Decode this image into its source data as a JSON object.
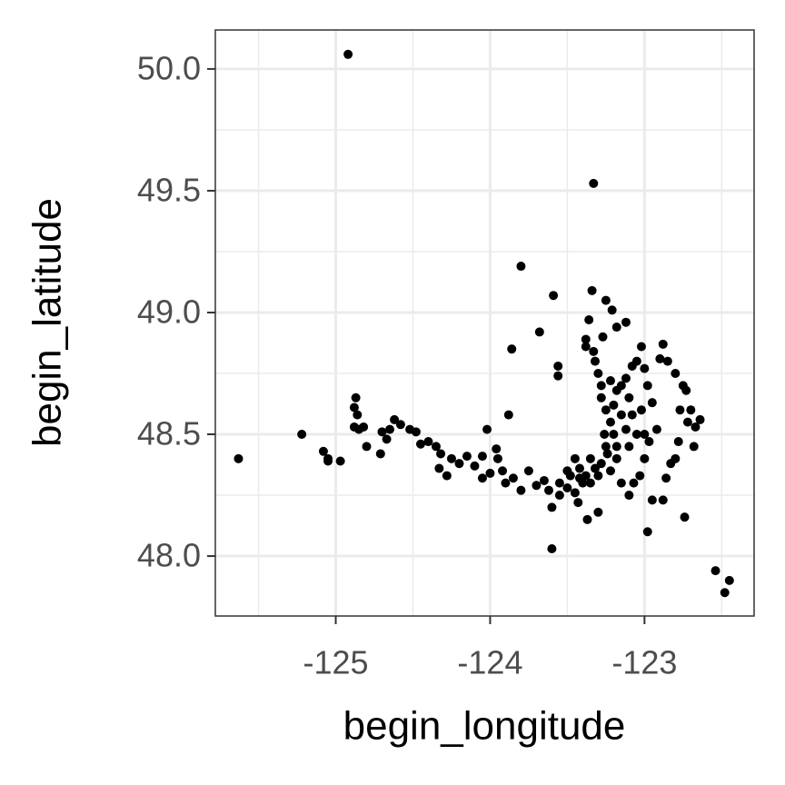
{
  "chart_data": {
    "type": "scatter",
    "x_label": "begin_longitude",
    "y_label": "begin_latitude",
    "xlim": [
      -125.78,
      -122.29
    ],
    "ylim": [
      47.754,
      50.16
    ],
    "xticks": [
      -125,
      -124,
      -123
    ],
    "yticks": [
      {
        "value": 48,
        "label": "48.0"
      },
      48.5,
      {
        "value": 49,
        "label": "49.0"
      },
      49.5,
      {
        "value": 50,
        "label": "50.0"
      }
    ],
    "xminor_ticks": [
      -125.5,
      -124.5,
      -123.5,
      -122.5
    ],
    "yminor_ticks": [
      48.25,
      48.75,
      49.25,
      49.75
    ],
    "grid": true,
    "color": "#000000",
    "x": [
      -125.63,
      -124.92,
      -123.33,
      -123.8,
      -123.59,
      -123.34,
      -123.6,
      -122.54,
      -122.45,
      -122.48,
      -122.98,
      -122.74,
      -125.22,
      -125.08,
      -125.05,
      -125.05,
      -124.97,
      -124.87,
      -124.88,
      -124.86,
      -124.88,
      -124.85,
      -124.82,
      -124.8,
      -124.71,
      -124.7,
      -124.65,
      -124.67,
      -124.62,
      -124.58,
      -124.52,
      -124.48,
      -124.45,
      -124.4,
      -124.35,
      -124.32,
      -124.33,
      -124.28,
      -124.25,
      -124.2,
      -124.15,
      -124.1,
      -124.05,
      -124.05,
      -124.0,
      -124.02,
      -123.96,
      -123.95,
      -123.92,
      -123.88,
      -123.86,
      -123.9,
      -123.85,
      -123.8,
      -123.75,
      -123.7,
      -123.65,
      -123.62,
      -123.68,
      -123.56,
      -123.56,
      -123.6,
      -123.55,
      -123.5,
      -123.48,
      -123.45,
      -123.43,
      -123.45,
      -123.42,
      -123.38,
      -123.38,
      -123.36,
      -123.35,
      -123.32,
      -123.33,
      -123.37,
      -123.3,
      -123.3,
      -123.28,
      -123.27,
      -123.25,
      -123.21,
      -123.18,
      -123.12,
      -123.3,
      -123.28,
      -123.25,
      -123.22,
      -123.2,
      -123.25,
      -123.18,
      -123.22,
      -123.15,
      -123.1,
      -123.12,
      -123.08,
      -123.05,
      -123.02,
      -123.0,
      -122.98,
      -123.02,
      -123.05,
      -123.1,
      -123.0,
      -123.03,
      -123.1,
      -123.07,
      -122.95,
      -122.97,
      -122.92,
      -122.95,
      -122.9,
      -122.88,
      -122.85,
      -122.8,
      -122.75,
      -122.73,
      -122.77,
      -122.72,
      -122.7,
      -122.67,
      -122.64,
      -122.68,
      -122.78,
      -122.8,
      -122.83,
      -122.86,
      -122.88,
      -123.0,
      -123.15,
      -123.35,
      -123.4,
      -123.5,
      -123.55,
      -123.2,
      -123.18,
      -123.15,
      -123.22,
      -123.08,
      -123.12,
      -123.18,
      -123.28,
      -123.32,
      -123.38,
      -123.42,
      -123.26,
      -123.24
    ],
    "y": [
      48.4,
      50.06,
      49.53,
      49.19,
      49.07,
      49.09,
      48.03,
      47.94,
      47.9,
      47.85,
      48.1,
      48.16,
      48.5,
      48.43,
      48.4,
      48.39,
      48.39,
      48.65,
      48.61,
      48.58,
      48.53,
      48.52,
      48.53,
      48.45,
      48.42,
      48.51,
      48.52,
      48.48,
      48.56,
      48.54,
      48.52,
      48.51,
      48.46,
      48.47,
      48.45,
      48.42,
      48.36,
      48.33,
      48.4,
      48.38,
      48.41,
      48.37,
      48.41,
      48.32,
      48.34,
      48.52,
      48.44,
      48.4,
      48.35,
      48.58,
      48.85,
      48.3,
      48.32,
      48.27,
      48.35,
      48.29,
      48.31,
      48.27,
      48.92,
      48.78,
      48.74,
      48.2,
      48.3,
      48.28,
      48.33,
      48.4,
      48.22,
      48.26,
      48.36,
      48.89,
      48.86,
      48.97,
      48.3,
      48.8,
      48.84,
      48.15,
      48.18,
      48.33,
      48.65,
      48.9,
      49.05,
      49.01,
      48.94,
      48.96,
      48.75,
      48.7,
      48.6,
      48.55,
      48.5,
      48.45,
      48.4,
      48.35,
      48.7,
      48.65,
      48.73,
      48.58,
      48.8,
      48.86,
      48.77,
      48.7,
      48.6,
      48.5,
      48.45,
      48.4,
      48.33,
      48.25,
      48.3,
      48.23,
      48.47,
      48.52,
      48.63,
      48.81,
      48.87,
      48.8,
      48.75,
      48.7,
      48.68,
      48.6,
      48.55,
      48.6,
      48.53,
      48.56,
      48.45,
      48.47,
      48.4,
      48.38,
      48.32,
      48.23,
      48.5,
      48.3,
      48.4,
      48.3,
      48.35,
      48.25,
      48.62,
      48.68,
      48.58,
      48.72,
      48.78,
      48.52,
      48.45,
      48.38,
      48.36,
      48.33,
      48.32,
      48.5,
      48.42
    ]
  }
}
